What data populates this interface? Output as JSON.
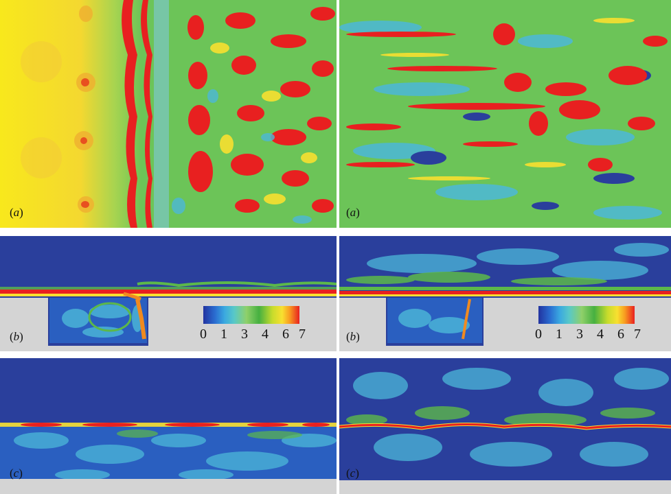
{
  "panels": {
    "top_left_label": "a",
    "top_right_label": "a",
    "mid_left_label": "b",
    "mid_right_label": "b",
    "bot_left_label": "c",
    "bot_right_label": "c"
  },
  "colorbar": {
    "ticks": [
      "0",
      "1",
      "3",
      "4",
      "6",
      "7"
    ]
  },
  "colors": {
    "deep_blue": "#2a3f9c",
    "cyan": "#4cb8d8",
    "green": "#5cb84a",
    "yellow": "#f4e040",
    "orange": "#f08a20",
    "red": "#e41e1e",
    "wall_grey": "#d4d4d4"
  }
}
